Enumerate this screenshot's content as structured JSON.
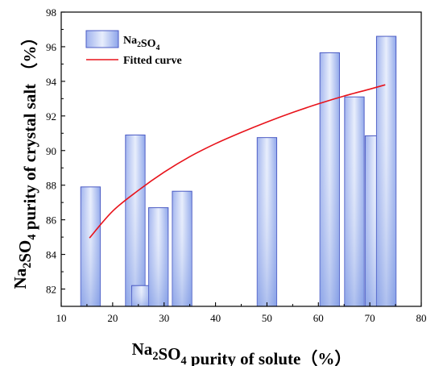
{
  "chart_data": {
    "type": "bar",
    "xlim": [
      10,
      80
    ],
    "ylim": [
      81,
      98
    ],
    "xticks": [
      10,
      20,
      30,
      40,
      50,
      60,
      70,
      80
    ],
    "yticks": [
      82,
      84,
      86,
      88,
      90,
      92,
      94,
      96,
      98
    ],
    "xlabel": {
      "main": "Na",
      "sub1": "2",
      "mid": "SO",
      "sub2": "4",
      "rest": " purity of solute（%）"
    },
    "ylabel": {
      "main": "Na",
      "sub1": "2",
      "mid": "SO",
      "sub2": "4",
      "rest": " purity of crystal salt （%）"
    },
    "bar_width": 3.8,
    "series": [
      {
        "name": "Na2SO4",
        "legend": {
          "main": "Na",
          "sub1": "2",
          "mid": "SO",
          "sub2": "4"
        },
        "x": [
          15.7,
          24.4,
          25.6,
          28.9,
          33.5,
          50.0,
          62.2,
          67.0,
          71.0,
          73.2
        ],
        "values": [
          87.9,
          90.9,
          82.2,
          86.7,
          87.65,
          90.75,
          95.65,
          93.1,
          90.85,
          96.6
        ]
      },
      {
        "name": "Fitted curve",
        "type": "line",
        "color": "#e8131b",
        "x": [
          15.5,
          20,
          25,
          30,
          35,
          40,
          45,
          50,
          55,
          60,
          65,
          70,
          73
        ],
        "y": [
          84.95,
          86.5,
          87.7,
          88.75,
          89.65,
          90.4,
          91.05,
          91.65,
          92.2,
          92.7,
          93.15,
          93.55,
          93.8
        ]
      }
    ],
    "colors": {
      "bar_edge": "#4b5bc4",
      "bar_light": "#dde6fb",
      "bar_mid": "#a9bcf0",
      "bar_dark": "#7f9ae3",
      "curve": "#e8131b"
    },
    "legend_position": "top-left"
  }
}
